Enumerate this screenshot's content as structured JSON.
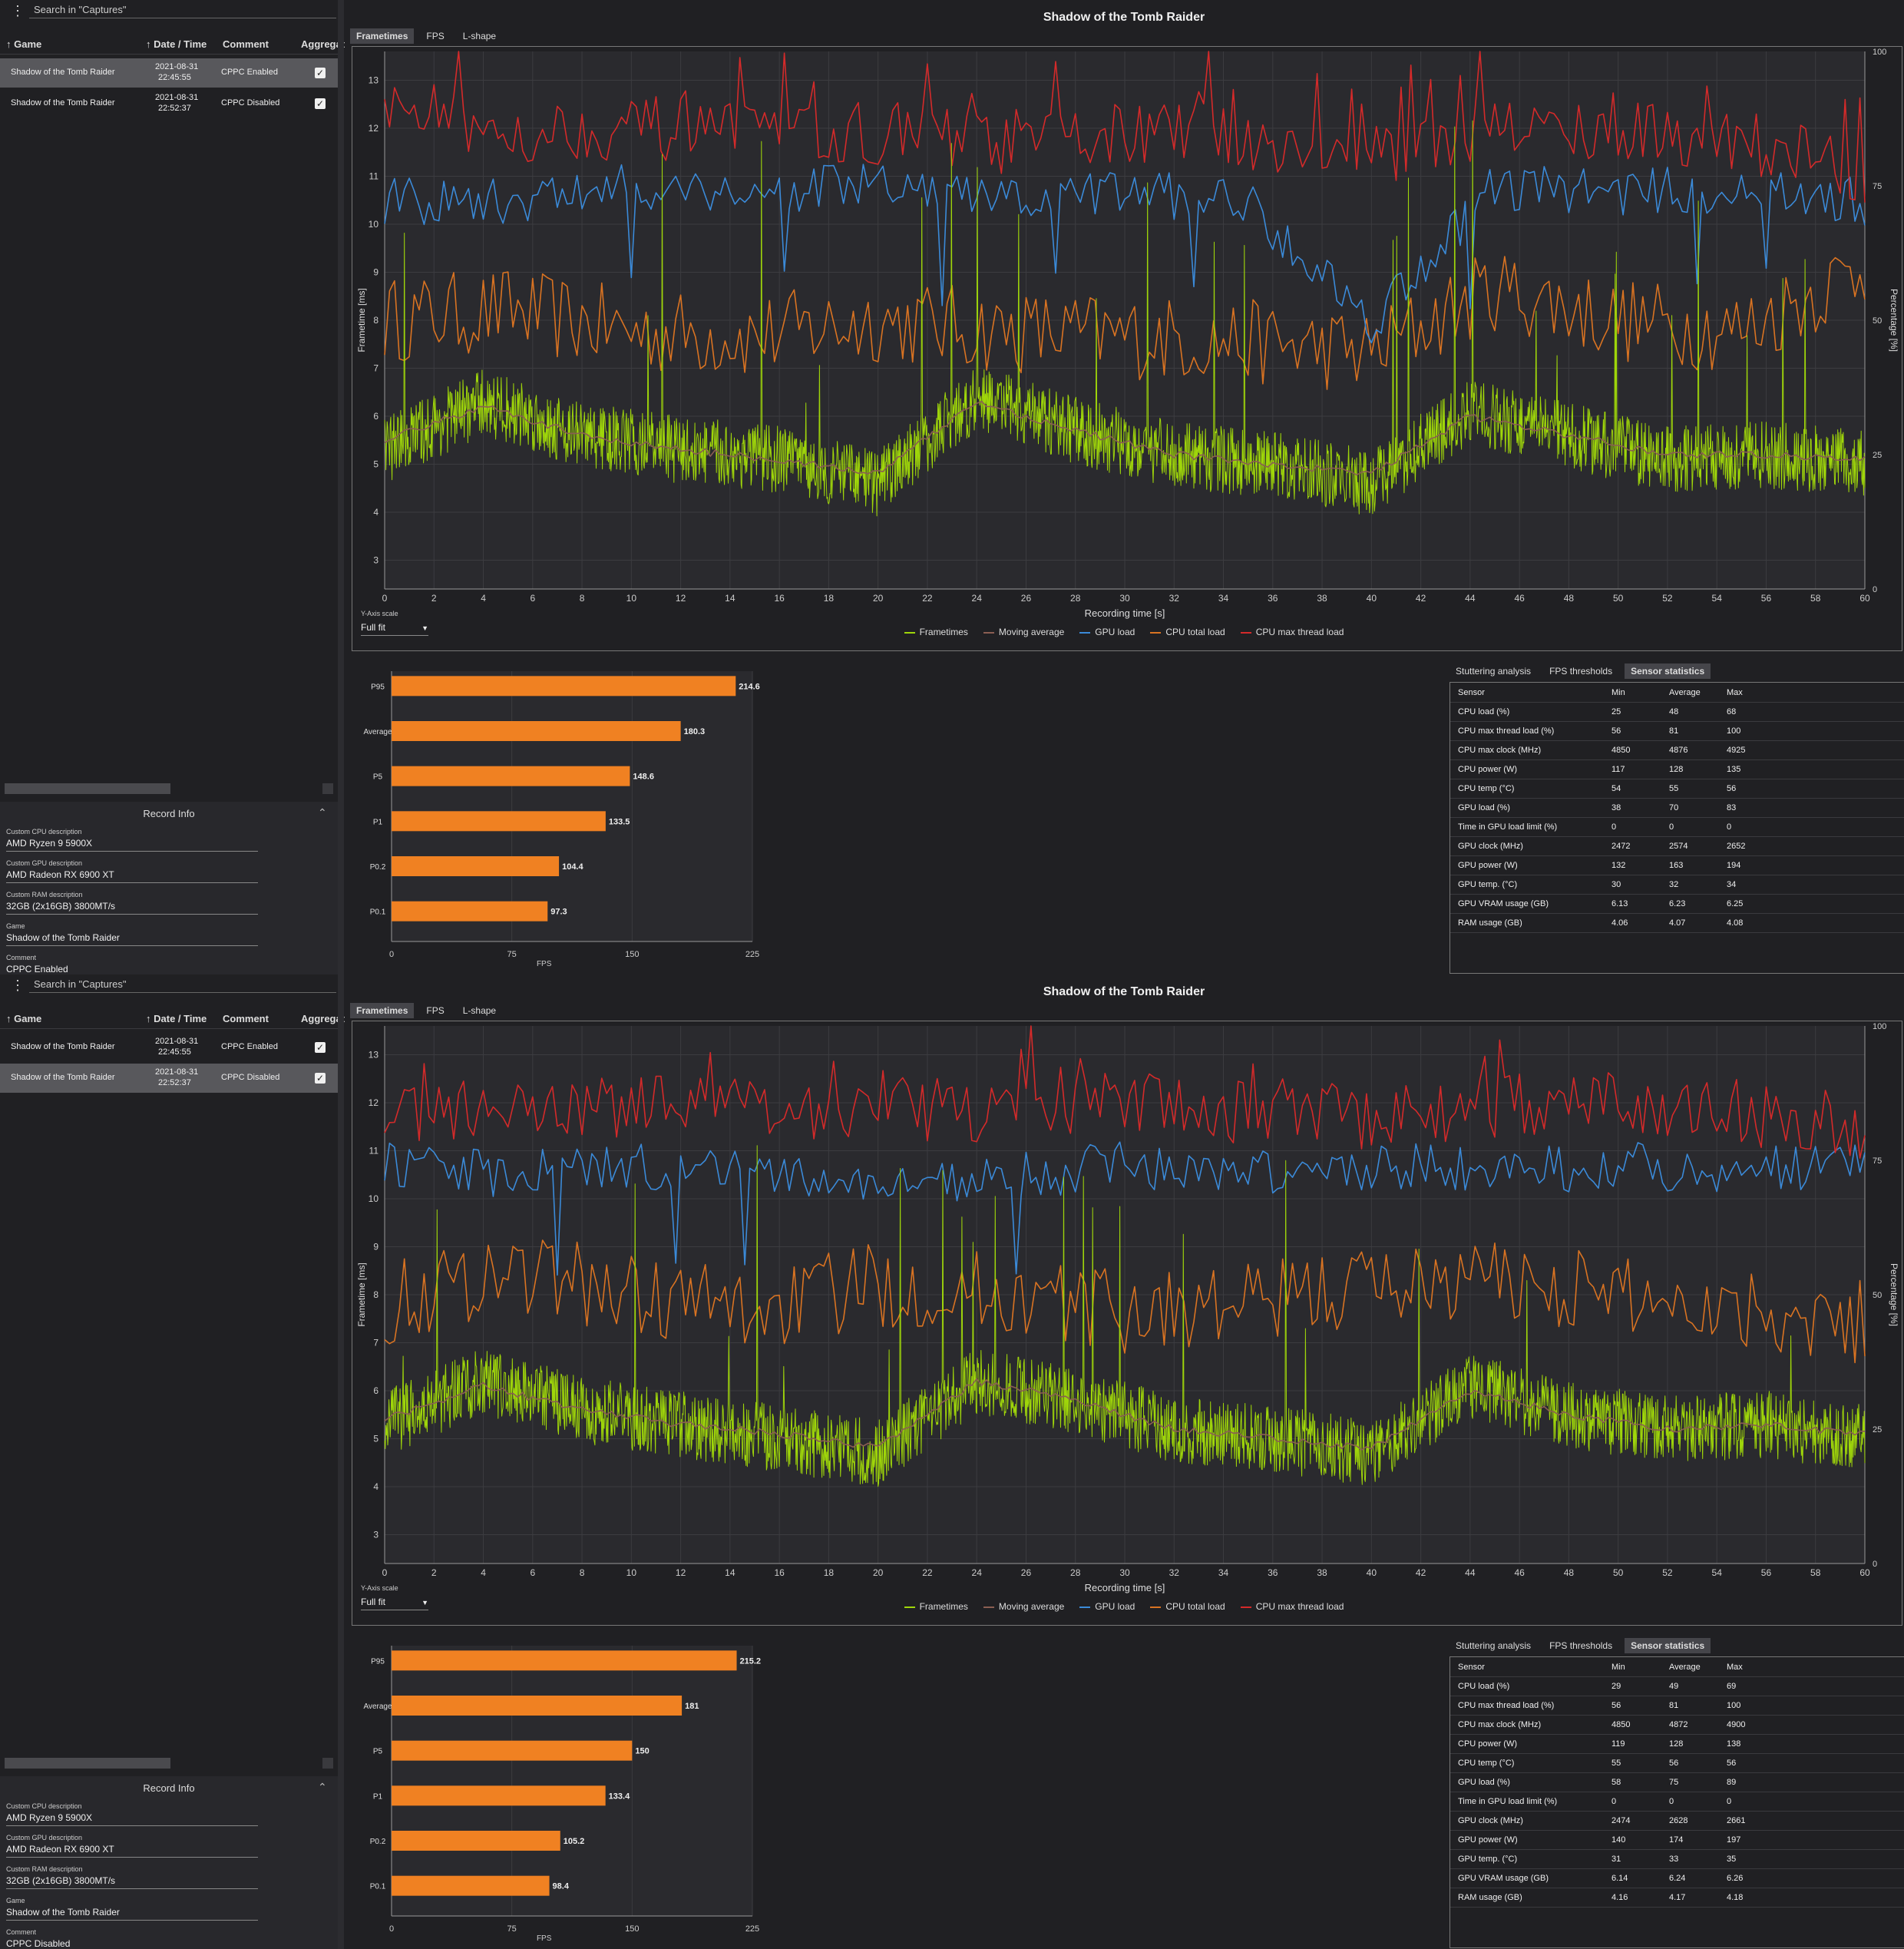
{
  "panels": [
    {
      "search_placeholder": "Search in \"Captures\"",
      "columns": [
        "Game",
        "Date / Time",
        "Comment",
        "Aggregat"
      ],
      "captures": [
        {
          "game": "Shadow of the Tomb Raider",
          "date": "2021-08-31",
          "time": "22:45:55",
          "comment": "CPPC Enabled",
          "aggregate": "✓",
          "selected": true
        },
        {
          "game": "Shadow of the Tomb Raider",
          "date": "2021-08-31",
          "time": "22:52:37",
          "comment": "CPPC Disabled",
          "aggregate": "✓",
          "selected": false
        }
      ],
      "record_info": {
        "header": "Record Info",
        "fields": [
          {
            "label": "Custom CPU description",
            "value": "AMD Ryzen 9 5900X"
          },
          {
            "label": "Custom GPU description",
            "value": "AMD Radeon RX 6900 XT"
          },
          {
            "label": "Custom RAM description",
            "value": "32GB (2x16GB) 3800MT/s"
          },
          {
            "label": "Game",
            "value": "Shadow of the Tomb Raider"
          },
          {
            "label": "Comment",
            "value": "CPPC Enabled"
          }
        ]
      },
      "tabs": [
        "Frametimes",
        "FPS",
        "L-shape"
      ],
      "active_tab": "Frametimes",
      "title": "Shadow of the Tomb Raider",
      "y_axis_scale_label": "Y-Axis scale",
      "y_axis_scale_value": "Full fit",
      "legend": [
        "Frametimes",
        "Moving average",
        "GPU load",
        "CPU total load",
        "CPU max thread load"
      ],
      "stats_tabs": [
        "Stuttering analysis",
        "FPS thresholds",
        "Sensor statistics"
      ],
      "stats_active": "Sensor statistics",
      "sensor_columns": [
        "Sensor",
        "Min",
        "Average",
        "Max"
      ],
      "sensors": [
        [
          "CPU load (%)",
          "25",
          "48",
          "68"
        ],
        [
          "CPU max thread load (%)",
          "56",
          "81",
          "100"
        ],
        [
          "CPU max clock (MHz)",
          "4850",
          "4876",
          "4925"
        ],
        [
          "CPU power (W)",
          "117",
          "128",
          "135"
        ],
        [
          "CPU temp (°C)",
          "54",
          "55",
          "56"
        ],
        [
          "GPU load (%)",
          "38",
          "70",
          "83"
        ],
        [
          "Time in GPU load limit (%)",
          "0",
          "0",
          "0"
        ],
        [
          "GPU clock (MHz)",
          "2472",
          "2574",
          "2652"
        ],
        [
          "GPU power (W)",
          "132",
          "163",
          "194"
        ],
        [
          "GPU temp. (°C)",
          "30",
          "32",
          "34"
        ],
        [
          "GPU VRAM usage (GB)",
          "6.13",
          "6.23",
          "6.25"
        ],
        [
          "RAM usage (GB)",
          "4.06",
          "4.07",
          "4.08"
        ]
      ]
    },
    {
      "search_placeholder": "Search in \"Captures\"",
      "columns": [
        "Game",
        "Date / Time",
        "Comment",
        "Aggregat"
      ],
      "captures": [
        {
          "game": "Shadow of the Tomb Raider",
          "date": "2021-08-31",
          "time": "22:45:55",
          "comment": "CPPC Enabled",
          "aggregate": "✓",
          "selected": false
        },
        {
          "game": "Shadow of the Tomb Raider",
          "date": "2021-08-31",
          "time": "22:52:37",
          "comment": "CPPC Disabled",
          "aggregate": "✓",
          "selected": true
        }
      ],
      "record_info": {
        "header": "Record Info",
        "fields": [
          {
            "label": "Custom CPU description",
            "value": "AMD Ryzen 9 5900X"
          },
          {
            "label": "Custom GPU description",
            "value": "AMD Radeon RX 6900 XT"
          },
          {
            "label": "Custom RAM description",
            "value": "32GB (2x16GB) 3800MT/s"
          },
          {
            "label": "Game",
            "value": "Shadow of the Tomb Raider"
          },
          {
            "label": "Comment",
            "value": "CPPC Disabled"
          }
        ]
      },
      "tabs": [
        "Frametimes",
        "FPS",
        "L-shape"
      ],
      "active_tab": "Frametimes",
      "title": "Shadow of the Tomb Raider",
      "y_axis_scale_label": "Y-Axis scale",
      "y_axis_scale_value": "Full fit",
      "legend": [
        "Frametimes",
        "Moving average",
        "GPU load",
        "CPU total load",
        "CPU max thread load"
      ],
      "stats_tabs": [
        "Stuttering analysis",
        "FPS thresholds",
        "Sensor statistics"
      ],
      "stats_active": "Sensor statistics",
      "sensor_columns": [
        "Sensor",
        "Min",
        "Average",
        "Max"
      ],
      "sensors": [
        [
          "CPU load (%)",
          "29",
          "49",
          "69"
        ],
        [
          "CPU max thread load (%)",
          "56",
          "81",
          "100"
        ],
        [
          "CPU max clock (MHz)",
          "4850",
          "4872",
          "4900"
        ],
        [
          "CPU power (W)",
          "119",
          "128",
          "138"
        ],
        [
          "CPU temp (°C)",
          "55",
          "56",
          "56"
        ],
        [
          "GPU load (%)",
          "58",
          "75",
          "89"
        ],
        [
          "Time in GPU load limit (%)",
          "0",
          "0",
          "0"
        ],
        [
          "GPU clock (MHz)",
          "2474",
          "2628",
          "2661"
        ],
        [
          "GPU power (W)",
          "140",
          "174",
          "197"
        ],
        [
          "GPU temp. (°C)",
          "31",
          "33",
          "35"
        ],
        [
          "GPU VRAM usage (GB)",
          "6.14",
          "6.24",
          "6.26"
        ],
        [
          "RAM usage (GB)",
          "4.16",
          "4.17",
          "4.18"
        ]
      ]
    }
  ],
  "chart_data": [
    {
      "type": "line",
      "title": "Shadow of the Tomb Raider",
      "xlabel": "Recording time [s]",
      "ylabel": "Frametime [ms]",
      "y2label": "Percentage [%]",
      "xlim": [
        0,
        60
      ],
      "ylim": [
        2.4,
        13.6
      ],
      "y2lim": [
        0,
        100
      ],
      "x_ticks": [
        0,
        2,
        4,
        6,
        8,
        10,
        12,
        14,
        16,
        18,
        20,
        22,
        24,
        26,
        28,
        30,
        32,
        34,
        36,
        38,
        40,
        42,
        44,
        46,
        48,
        50,
        52,
        54,
        56,
        58,
        60
      ],
      "y_ticks": [
        3,
        4,
        5,
        6,
        7,
        8,
        9,
        10,
        11,
        12,
        13
      ],
      "y2_ticks": [
        0,
        25,
        50,
        75,
        100
      ],
      "series": [
        {
          "name": "Frametimes",
          "color": "#9fd60a",
          "axis": "left",
          "x": [
            0,
            4,
            8,
            12,
            16,
            20,
            24,
            28,
            32,
            36,
            40,
            44,
            48,
            52,
            56,
            60
          ],
          "values": [
            5.3,
            6.3,
            5.6,
            5.3,
            5.1,
            4.6,
            6.4,
            5.7,
            5.2,
            5.0,
            4.6,
            6.1,
            5.6,
            5.1,
            5.2,
            5.0
          ]
        },
        {
          "name": "Moving average",
          "color": "#8b5e52",
          "axis": "left",
          "x": [
            0,
            4,
            8,
            12,
            16,
            20,
            24,
            28,
            32,
            36,
            40,
            44,
            48,
            52,
            56,
            60
          ],
          "values": [
            5.5,
            6.2,
            5.6,
            5.3,
            5.1,
            4.8,
            6.3,
            5.7,
            5.2,
            5.0,
            4.8,
            6.0,
            5.6,
            5.2,
            5.2,
            5.1
          ]
        },
        {
          "name": "GPU load",
          "color": "#3b8ad8",
          "axis": "right",
          "x": [
            0,
            5,
            10,
            15,
            20,
            25,
            30,
            35,
            40,
            45,
            50,
            55,
            60
          ],
          "values": [
            72,
            72,
            75,
            74,
            75,
            72,
            74,
            72,
            50,
            75,
            74,
            74,
            72
          ]
        },
        {
          "name": "CPU total load",
          "color": "#d97322",
          "axis": "right",
          "x": [
            0,
            5,
            10,
            15,
            20,
            25,
            30,
            35,
            40,
            45,
            50,
            55,
            60
          ],
          "values": [
            50,
            52,
            48,
            47,
            50,
            48,
            47,
            46,
            44,
            56,
            50,
            48,
            60
          ]
        },
        {
          "name": "CPU max thread load",
          "color": "#d42a2a",
          "axis": "right",
          "x": [
            0,
            5,
            10,
            15,
            20,
            25,
            30,
            35,
            40,
            45,
            50,
            55,
            60
          ],
          "values": [
            88,
            85,
            86,
            84,
            85,
            83,
            85,
            84,
            80,
            86,
            85,
            84,
            76
          ]
        }
      ],
      "legend": "bottom"
    },
    {
      "type": "bar",
      "orientation": "horizontal",
      "categories": [
        "P95",
        "Average",
        "P5",
        "P1",
        "P0.2",
        "P0.1"
      ],
      "values": [
        214.6,
        180.3,
        148.6,
        133.5,
        104.4,
        97.3
      ],
      "xlabel": "FPS",
      "xlim": [
        0,
        225
      ],
      "x_ticks": [
        0,
        75,
        150,
        225
      ],
      "color": "#f08122"
    },
    {
      "type": "line",
      "title": "Shadow of the Tomb Raider",
      "xlabel": "Recording time [s]",
      "ylabel": "Frametime [ms]",
      "y2label": "Percentage [%]",
      "xlim": [
        0,
        60
      ],
      "ylim": [
        2.4,
        13.6
      ],
      "y2lim": [
        0,
        100
      ],
      "x_ticks": [
        0,
        2,
        4,
        6,
        8,
        10,
        12,
        14,
        16,
        18,
        20,
        22,
        24,
        26,
        28,
        30,
        32,
        34,
        36,
        38,
        40,
        42,
        44,
        46,
        48,
        50,
        52,
        54,
        56,
        58,
        60
      ],
      "y_ticks": [
        3,
        4,
        5,
        6,
        7,
        8,
        9,
        10,
        11,
        12,
        13
      ],
      "y2_ticks": [
        0,
        25,
        50,
        75,
        100
      ],
      "series": [
        {
          "name": "Frametimes",
          "color": "#9fd60a",
          "axis": "left",
          "x": [
            0,
            4,
            8,
            12,
            16,
            20,
            24,
            28,
            32,
            36,
            40,
            44,
            48,
            52,
            56,
            60
          ],
          "values": [
            5.3,
            6.2,
            5.6,
            5.3,
            5.0,
            4.7,
            6.2,
            5.8,
            5.2,
            5.0,
            4.7,
            6.1,
            5.5,
            5.2,
            5.3,
            5.0
          ]
        },
        {
          "name": "Moving average",
          "color": "#8b5e52",
          "axis": "left",
          "x": [
            0,
            4,
            8,
            12,
            16,
            20,
            24,
            28,
            32,
            36,
            40,
            44,
            48,
            52,
            56,
            60
          ],
          "values": [
            5.4,
            6.1,
            5.6,
            5.3,
            5.1,
            4.8,
            6.2,
            5.8,
            5.2,
            5.0,
            4.8,
            6.0,
            5.5,
            5.2,
            5.3,
            5.1
          ]
        },
        {
          "name": "GPU load",
          "color": "#3b8ad8",
          "axis": "right",
          "x": [
            0,
            5,
            10,
            15,
            20,
            25,
            30,
            35,
            40,
            45,
            50,
            55,
            60
          ],
          "values": [
            75,
            72,
            74,
            73,
            70,
            72,
            74,
            72,
            74,
            73,
            74,
            73,
            74
          ]
        },
        {
          "name": "CPU total load",
          "color": "#d97322",
          "axis": "right",
          "x": [
            0,
            5,
            10,
            15,
            20,
            25,
            30,
            35,
            40,
            45,
            50,
            55,
            60
          ],
          "values": [
            48,
            55,
            50,
            47,
            52,
            50,
            47,
            48,
            52,
            53,
            50,
            48,
            45
          ]
        },
        {
          "name": "CPU max thread load",
          "color": "#d42a2a",
          "axis": "right",
          "x": [
            0,
            5,
            10,
            15,
            20,
            25,
            30,
            35,
            40,
            45,
            50,
            55,
            60
          ],
          "values": [
            82,
            86,
            85,
            84,
            85,
            84,
            86,
            84,
            83,
            85,
            85,
            84,
            80
          ]
        }
      ],
      "legend": "bottom"
    },
    {
      "type": "bar",
      "orientation": "horizontal",
      "categories": [
        "P95",
        "Average",
        "P5",
        "P1",
        "P0.2",
        "P0.1"
      ],
      "values": [
        215.2,
        181,
        150,
        133.4,
        105.2,
        98.4
      ],
      "xlabel": "FPS",
      "xlim": [
        0,
        225
      ],
      "x_ticks": [
        0,
        75,
        150,
        225
      ],
      "color": "#f08122"
    }
  ]
}
